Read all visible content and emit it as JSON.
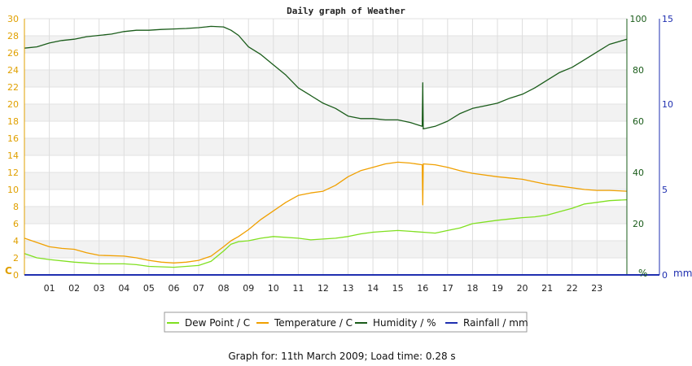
{
  "chart_data": {
    "type": "line",
    "title": "Daily graph of Weather",
    "x_ticks": [
      "01",
      "02",
      "03",
      "04",
      "05",
      "06",
      "07",
      "08",
      "09",
      "10",
      "11",
      "12",
      "13",
      "14",
      "15",
      "16",
      "17",
      "18",
      "19",
      "20",
      "21",
      "22",
      "23"
    ],
    "xlim": [
      0,
      24.2
    ],
    "y_left": {
      "unit": "C",
      "ylim": [
        0,
        30
      ],
      "ticks": [
        0,
        2,
        4,
        6,
        8,
        10,
        12,
        14,
        16,
        18,
        20,
        22,
        24,
        26,
        28,
        30
      ]
    },
    "y_humidity": {
      "unit": "%",
      "ylim": [
        0,
        100
      ],
      "ticks": [
        0,
        20,
        40,
        60,
        80,
        100
      ]
    },
    "y_rain": {
      "unit": "mm",
      "ylim": [
        0,
        15
      ],
      "ticks": [
        0,
        5,
        10,
        15
      ]
    },
    "grid": true,
    "legend_position": "bottom",
    "series": [
      {
        "name": "Dew Point / C",
        "axis": "left",
        "color": "#80e020",
        "x": [
          0,
          0.5,
          1,
          2,
          2.5,
          3,
          4,
          4.5,
          5,
          6,
          6.5,
          7,
          7.5,
          8,
          8.3,
          8.6,
          9,
          9.5,
          10,
          11,
          11.5,
          12,
          12.5,
          13,
          13.5,
          14,
          14.5,
          15,
          15.5,
          16,
          16.5,
          17,
          17.5,
          18,
          19,
          20,
          20.5,
          21,
          21.5,
          22,
          22.5,
          23,
          23.5,
          24.2
        ],
        "values": [
          2.5,
          2.0,
          1.8,
          1.5,
          1.4,
          1.3,
          1.3,
          1.2,
          1.0,
          0.9,
          1.0,
          1.1,
          1.6,
          2.8,
          3.6,
          3.9,
          4.0,
          4.3,
          4.5,
          4.3,
          4.1,
          4.2,
          4.3,
          4.5,
          4.8,
          5.0,
          5.1,
          5.2,
          5.1,
          5.0,
          4.9,
          5.2,
          5.5,
          6.0,
          6.4,
          6.7,
          6.8,
          7.0,
          7.4,
          7.8,
          8.3,
          8.5,
          8.7,
          8.8
        ]
      },
      {
        "name": "Temperature / C",
        "axis": "left",
        "color": "#f0a000",
        "x": [
          0,
          0.5,
          1,
          1.5,
          2,
          2.5,
          3,
          4,
          4.5,
          5,
          5.5,
          6,
          6.5,
          7,
          7.5,
          8,
          8.3,
          8.6,
          9,
          9.5,
          10,
          10.5,
          11,
          11.5,
          12,
          12.5,
          13,
          13.5,
          14,
          14.5,
          15,
          15.5,
          15.98,
          16,
          16.02,
          16.5,
          17,
          17.5,
          18,
          19,
          20,
          20.5,
          21,
          21.5,
          22,
          22.5,
          23,
          23.5,
          24.2
        ],
        "values": [
          4.3,
          3.8,
          3.3,
          3.1,
          3.0,
          2.6,
          2.3,
          2.2,
          2.0,
          1.7,
          1.5,
          1.4,
          1.5,
          1.7,
          2.2,
          3.3,
          4.0,
          4.5,
          5.3,
          6.5,
          7.5,
          8.5,
          9.3,
          9.6,
          9.8,
          10.5,
          11.5,
          12.2,
          12.6,
          13.0,
          13.2,
          13.1,
          12.9,
          8.2,
          13.0,
          12.9,
          12.6,
          12.2,
          11.9,
          11.5,
          11.2,
          10.9,
          10.6,
          10.4,
          10.2,
          10.0,
          9.9,
          9.9,
          9.8
        ]
      },
      {
        "name": "Humidity / %",
        "axis": "humidity",
        "color": "#1a5c1a",
        "x": [
          0,
          0.5,
          1,
          1.5,
          2,
          2.5,
          3,
          3.5,
          4,
          4.5,
          5,
          5.5,
          6,
          6.5,
          7,
          7.5,
          8,
          8.3,
          8.6,
          9,
          9.5,
          10,
          10.5,
          11,
          11.5,
          12,
          12.5,
          13,
          13.5,
          14,
          14.5,
          15,
          15.5,
          15.98,
          16,
          16.02,
          16.5,
          17,
          17.5,
          18,
          18.5,
          19,
          19.5,
          20,
          20.5,
          21,
          21.5,
          22,
          22.5,
          23,
          23.5,
          24.2
        ],
        "values": [
          88.5,
          89,
          90.5,
          91.5,
          92,
          93,
          93.5,
          94,
          95,
          95.5,
          95.5,
          95.8,
          96,
          96.2,
          96.5,
          97,
          96.8,
          95.5,
          93.5,
          89,
          86,
          82,
          78,
          73,
          70,
          67,
          65,
          62,
          61,
          61,
          60.5,
          60.5,
          59.5,
          58,
          75,
          57,
          58,
          60,
          63,
          65,
          66,
          67,
          69,
          70.5,
          73,
          76,
          79,
          81,
          84,
          87,
          90,
          92
        ]
      },
      {
        "name": "Rainfall / mm",
        "axis": "rain",
        "color": "#1f2fb0",
        "x": [
          0,
          24.2
        ],
        "values": [
          0,
          0
        ]
      }
    ]
  },
  "footer": {
    "text": "Graph for: 11th March 2009; Load time: 0.28 s"
  }
}
